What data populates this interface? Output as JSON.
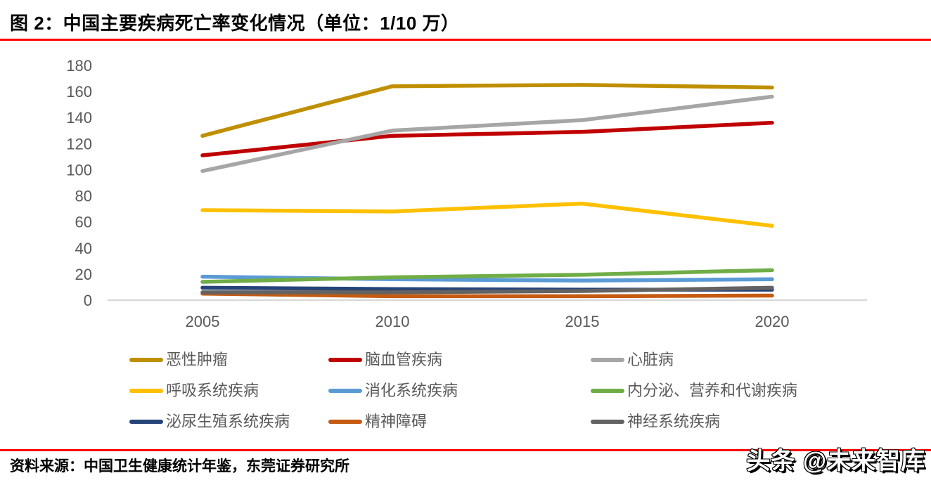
{
  "header": {
    "title": "图 2：中国主要疾病死亡率变化情况（单位：1/10 万）"
  },
  "chart_data": {
    "type": "line",
    "title": "中国主要疾病死亡率变化情况",
    "unit": "1/10 万",
    "categories": [
      "2005",
      "2010",
      "2015",
      "2020"
    ],
    "xlabel": "",
    "ylabel": "",
    "ylim": [
      0,
      180
    ],
    "y_ticks": [
      180,
      160,
      140,
      120,
      100,
      80,
      60,
      40,
      20,
      0
    ],
    "grid": false,
    "legend_position": "bottom",
    "series": [
      {
        "name": "恶性肿瘤",
        "color": "#BF8F00",
        "values": [
          126,
          164,
          165,
          163
        ]
      },
      {
        "name": "脑血管疾病",
        "color": "#C00000",
        "values": [
          111,
          126,
          129,
          136
        ]
      },
      {
        "name": "心脏病",
        "color": "#A6A6A6",
        "values": [
          99,
          130,
          138,
          156
        ]
      },
      {
        "name": "呼吸系统疾病",
        "color": "#FFC000",
        "values": [
          69,
          68,
          74,
          57
        ]
      },
      {
        "name": "消化系统疾病",
        "color": "#5B9BD5",
        "values": [
          18,
          16,
          15,
          16
        ]
      },
      {
        "name": "内分泌、营养和代谢疾病",
        "color": "#70AD47",
        "values": [
          14,
          17.5,
          19.5,
          23
        ]
      },
      {
        "name": "泌尿生殖系统疾病",
        "color": "#264478",
        "values": [
          9.5,
          8.5,
          8,
          8
        ]
      },
      {
        "name": "精神障碍",
        "color": "#C55A11",
        "values": [
          5,
          3,
          3,
          3.5
        ]
      },
      {
        "name": "神经系统疾病",
        "color": "#636363",
        "values": [
          6,
          6,
          7,
          9.5
        ]
      }
    ]
  },
  "footer": {
    "source": "资料来源：中国卫生健康统计年鉴，东莞证券研究所",
    "watermark": "头条 @未来智库"
  },
  "colors": {
    "accent_red": "#FE0000",
    "axis_line": "#D9D9D9",
    "axis_text": "#595959",
    "legend_text": "#595959",
    "title_text": "#000000"
  }
}
